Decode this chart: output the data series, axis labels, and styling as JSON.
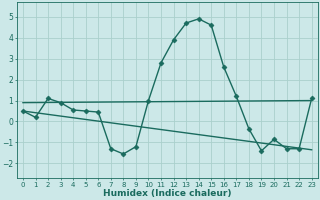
{
  "title": "",
  "xlabel": "Humidex (Indice chaleur)",
  "xlim": [
    -0.5,
    23.5
  ],
  "ylim": [
    -2.7,
    5.7
  ],
  "yticks": [
    -2,
    -1,
    0,
    1,
    2,
    3,
    4,
    5
  ],
  "xticks": [
    0,
    1,
    2,
    3,
    4,
    5,
    6,
    7,
    8,
    9,
    10,
    11,
    12,
    13,
    14,
    15,
    16,
    17,
    18,
    19,
    20,
    21,
    22,
    23
  ],
  "bg_color": "#cce8e8",
  "line_color": "#1a6b5e",
  "grid_color": "#aad0cc",
  "line1_x": [
    0,
    1,
    2,
    3,
    4,
    5,
    6,
    7,
    8,
    9,
    10,
    11,
    12,
    13,
    14,
    15,
    16,
    17,
    18,
    19,
    20,
    21,
    22,
    23
  ],
  "line1_y": [
    0.5,
    0.2,
    1.1,
    0.9,
    0.55,
    0.5,
    0.45,
    -1.3,
    -1.55,
    -1.2,
    1.0,
    2.8,
    3.9,
    4.7,
    4.9,
    4.6,
    2.6,
    1.2,
    -0.35,
    -1.4,
    -0.85,
    -1.3,
    -1.3,
    1.1
  ],
  "line2_x": [
    0,
    23
  ],
  "line2_y": [
    0.9,
    1.0
  ],
  "line3_x": [
    0,
    23
  ],
  "line3_y": [
    0.5,
    -1.35
  ],
  "marker": "D",
  "markersize": 2.5,
  "linewidth": 1.0
}
